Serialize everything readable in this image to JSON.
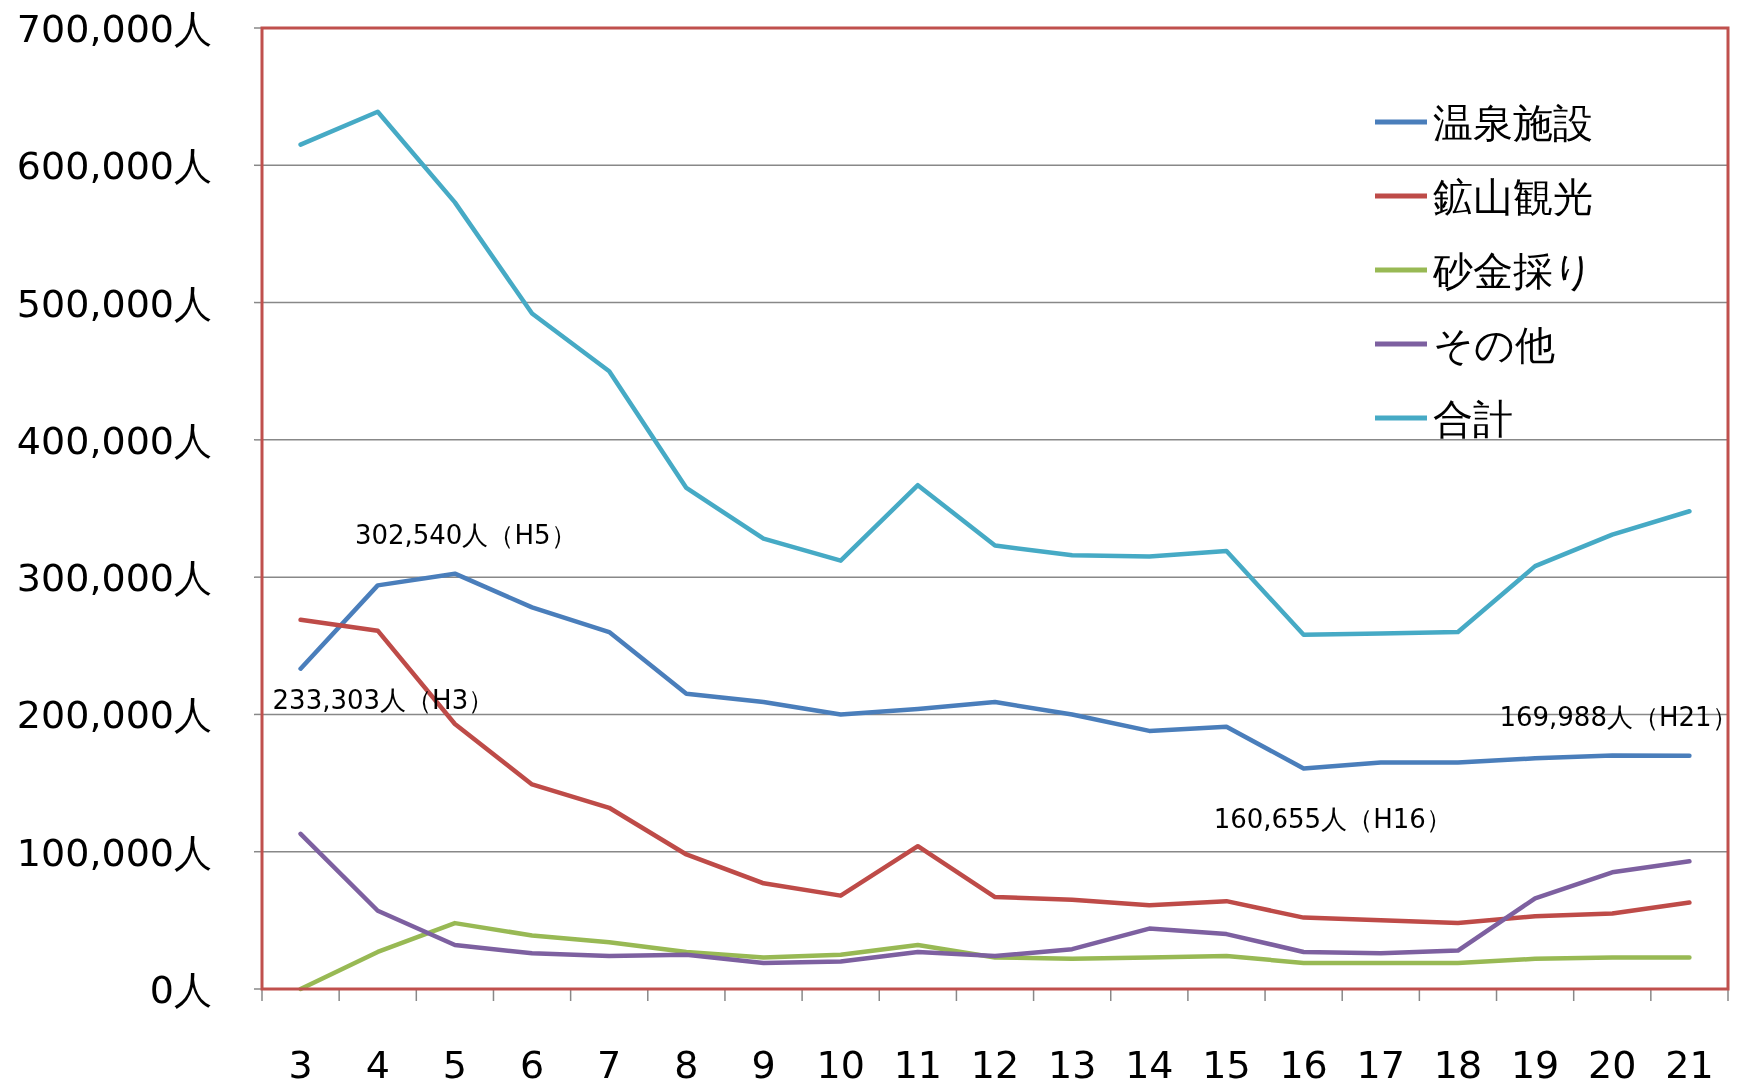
{
  "chart_data": {
    "type": "line",
    "categories": [
      "3",
      "4",
      "5",
      "6",
      "7",
      "8",
      "9",
      "10",
      "11",
      "12",
      "13",
      "14",
      "15",
      "16",
      "17",
      "18",
      "19",
      "20",
      "21"
    ],
    "ylim": [
      0,
      700000
    ],
    "yticks": [
      {
        "value": 0,
        "label": "0人"
      },
      {
        "value": 100000,
        "label": "100,000人"
      },
      {
        "value": 200000,
        "label": "200,000人"
      },
      {
        "value": 300000,
        "label": "300,000人"
      },
      {
        "value": 400000,
        "label": "400,000人"
      },
      {
        "value": 500000,
        "label": "500,000人"
      },
      {
        "value": 600000,
        "label": "600,000人"
      },
      {
        "value": 700000,
        "label": "700,000人"
      }
    ],
    "grid": "y",
    "legend": "top right",
    "marker": "none",
    "line_style": "solid",
    "series": [
      {
        "name": "温泉施設",
        "color": "#4a7ebb",
        "values": [
          233303,
          294000,
          302540,
          278000,
          260000,
          215000,
          209000,
          200000,
          204000,
          209000,
          200000,
          188000,
          191000,
          160655,
          165000,
          165000,
          168000,
          170000,
          169988
        ]
      },
      {
        "name": "鉱山観光",
        "color": "#be4b48",
        "values": [
          269000,
          261000,
          193000,
          149000,
          132000,
          98000,
          77000,
          68000,
          104000,
          67000,
          65000,
          61000,
          64000,
          52000,
          50000,
          48000,
          53000,
          55000,
          63000
        ]
      },
      {
        "name": "砂金採り",
        "color": "#98b954",
        "values": [
          0,
          27000,
          48000,
          39000,
          34000,
          27000,
          23000,
          25000,
          32000,
          23000,
          22000,
          23000,
          24000,
          19000,
          19000,
          19000,
          22000,
          23000,
          23000
        ]
      },
      {
        "name": "その他",
        "color": "#7d60a0",
        "values": [
          113000,
          57000,
          32000,
          26000,
          24000,
          25000,
          19000,
          20000,
          27000,
          24000,
          29000,
          44000,
          40000,
          27000,
          26000,
          28000,
          66000,
          85000,
          93000
        ]
      },
      {
        "name": "合計",
        "color": "#46aac5",
        "values": [
          615000,
          639000,
          573000,
          492000,
          450000,
          365000,
          328000,
          312000,
          367000,
          323000,
          316000,
          315000,
          319000,
          258000,
          259000,
          260000,
          308000,
          331000,
          348000
        ]
      }
    ],
    "annotations": [
      {
        "text": "233,303人（H3）",
        "x": "3",
        "y": 233303
      },
      {
        "text": "302,540人（H5）",
        "x": "5",
        "y": 302540
      },
      {
        "text": "160,655人（H16）",
        "x": "16",
        "y": 160655
      },
      {
        "text": "169,988人（H21）",
        "x": "21",
        "y": 169988
      }
    ]
  }
}
